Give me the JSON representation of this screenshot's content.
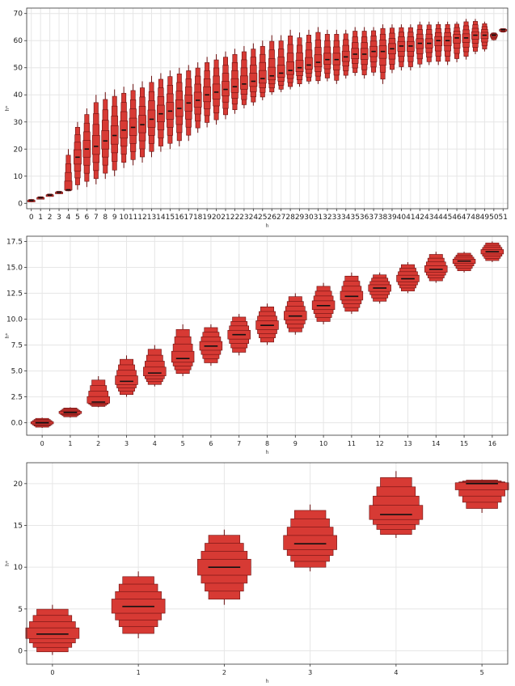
{
  "colors": {
    "box_fill": "#d73a34",
    "box_edge": "#6b1010",
    "median": "#111111",
    "grid": "#e6e6e6",
    "axis": "#333333"
  },
  "chart_data": [
    {
      "type": "letter-value-plot",
      "xlabel": "h",
      "ylabel": "h*",
      "ylim": [
        -2,
        72
      ],
      "yticks": [
        0,
        10,
        20,
        30,
        40,
        50,
        60,
        70
      ],
      "categories": [
        "0",
        "1",
        "2",
        "3",
        "4",
        "5",
        "6",
        "7",
        "8",
        "9",
        "10",
        "11",
        "12",
        "13",
        "14",
        "15",
        "16",
        "17",
        "18",
        "19",
        "20",
        "21",
        "22",
        "23",
        "24",
        "25",
        "26",
        "27",
        "28",
        "29",
        "30",
        "31",
        "32",
        "33",
        "34",
        "35",
        "36",
        "37",
        "38",
        "39",
        "40",
        "41",
        "42",
        "43",
        "44",
        "45",
        "46",
        "47",
        "48",
        "49",
        "50",
        "51"
      ],
      "grid": true,
      "medians": [
        1,
        2,
        3,
        4,
        5,
        17,
        20,
        21,
        23,
        25,
        27,
        28,
        29,
        31,
        33,
        34,
        35,
        37,
        38,
        40,
        41,
        42,
        43,
        44,
        45,
        46,
        47,
        48,
        49,
        50,
        51,
        52,
        53,
        53,
        54,
        55,
        55,
        56,
        56,
        57,
        58,
        58,
        59,
        59,
        60,
        60,
        61,
        61,
        62,
        62,
        62,
        64
      ],
      "iqr_half": [
        0.4,
        0.4,
        0.4,
        0.6,
        0.8,
        5,
        6,
        6,
        6,
        6,
        6,
        6,
        6,
        6,
        6,
        6,
        6,
        6,
        6,
        6,
        6,
        6,
        5,
        5,
        5,
        5,
        5,
        5,
        5,
        5,
        5,
        5,
        5,
        5,
        5,
        5,
        5,
        5,
        5,
        5,
        5,
        4,
        4,
        4,
        4,
        4,
        4,
        4,
        4,
        3,
        1,
        0.5
      ],
      "whisker_low": [
        0.5,
        1.5,
        2.5,
        3.5,
        4.5,
        5,
        6,
        7,
        9,
        10,
        13,
        14,
        15,
        17,
        19,
        20,
        21,
        23,
        26,
        28,
        29,
        31,
        33,
        35,
        36,
        38,
        40,
        41,
        42,
        43,
        44,
        44,
        45,
        44,
        46,
        47,
        46,
        47,
        44,
        48,
        49,
        49,
        50,
        51,
        51,
        51,
        52,
        53,
        55,
        56,
        60,
        63
      ],
      "whisker_high": [
        1.5,
        2.5,
        3.5,
        4.5,
        20,
        30,
        35,
        40,
        41,
        42,
        43,
        44,
        45,
        47,
        48,
        49,
        50,
        51,
        52,
        54,
        55,
        56,
        57,
        58,
        59,
        60,
        62,
        62,
        64,
        63,
        64,
        65,
        64,
        64,
        64,
        65,
        65,
        65,
        66,
        66,
        66,
        66,
        67,
        67,
        67,
        67,
        67,
        68,
        68,
        67,
        63,
        64.5
      ]
    },
    {
      "type": "letter-value-plot",
      "xlabel": "h",
      "ylabel": "h*",
      "ylim": [
        -1.2,
        18
      ],
      "yticks": [
        "0.0",
        "2.5",
        "5.0",
        "7.5",
        "10.0",
        "12.5",
        "15.0",
        "17.5"
      ],
      "categories": [
        "0",
        "1",
        "2",
        "3",
        "4",
        "5",
        "6",
        "7",
        "8",
        "9",
        "10",
        "11",
        "12",
        "13",
        "14",
        "15",
        "16"
      ],
      "grid": true,
      "medians": [
        0,
        1,
        2,
        4,
        4.8,
        6.2,
        7.4,
        8.5,
        9.4,
        10.3,
        11.3,
        12.2,
        13,
        13.9,
        14.8,
        15.6,
        16.5
      ],
      "whisker_low": [
        -0.5,
        0.5,
        1.5,
        2.5,
        3.5,
        4.5,
        5.5,
        6.5,
        7.5,
        8.5,
        9.5,
        10.5,
        11.5,
        12.5,
        13.5,
        14.5,
        15.5
      ],
      "whisker_high": [
        0.5,
        1.5,
        4.5,
        6.5,
        7.5,
        9.5,
        9.5,
        10.5,
        11.5,
        12.5,
        13.5,
        14.5,
        14.5,
        15.5,
        16.5,
        16.5,
        17.5
      ]
    },
    {
      "type": "letter-value-plot",
      "xlabel": "h",
      "ylabel": "h*",
      "ylim": [
        -1.6,
        22.5
      ],
      "yticks": [
        0,
        5,
        10,
        15,
        20
      ],
      "categories": [
        "0",
        "1",
        "2",
        "3",
        "4",
        "5"
      ],
      "grid": true,
      "medians": [
        2,
        5.3,
        10,
        12.8,
        16.3,
        20
      ],
      "whisker_low": [
        -0.5,
        1.5,
        5.5,
        9.5,
        13.5,
        16.5
      ],
      "whisker_high": [
        5.5,
        9.5,
        14.5,
        17.5,
        21.5,
        20.5
      ]
    }
  ]
}
